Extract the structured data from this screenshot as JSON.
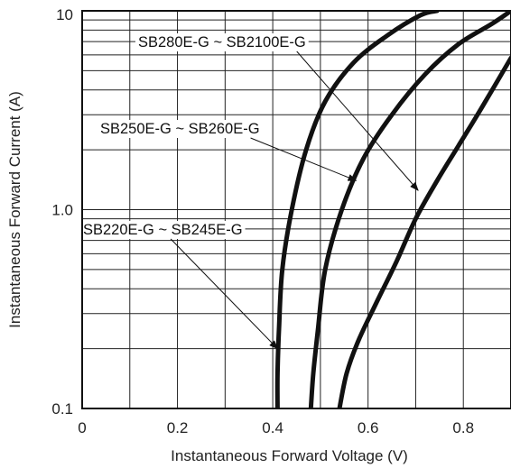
{
  "chart_data": {
    "type": "line",
    "title": "",
    "xlabel": "Instantaneous Forward Voltage (V)",
    "ylabel": "Instantaneous Forward Current (A)",
    "xlim": [
      0,
      0.9
    ],
    "ylim": [
      0.1,
      10
    ],
    "yscale": "log",
    "grid": true,
    "x_ticks": [
      0,
      0.2,
      0.4,
      0.6,
      0.8
    ],
    "x_tick_labels": [
      "0",
      "0.2",
      "0.4",
      "0.6",
      "0.8"
    ],
    "y_ticks": [
      0.1,
      1.0,
      10
    ],
    "y_tick_labels": [
      "0.1",
      "1.0",
      "10"
    ],
    "series": [
      {
        "name": "SB220E-G ~ SB245E-G",
        "x": [
          0.41,
          0.41,
          0.413,
          0.42,
          0.44,
          0.47,
          0.51,
          0.57,
          0.64,
          0.71,
          0.745
        ],
        "y": [
          0.1,
          0.15,
          0.25,
          0.5,
          1.0,
          2.0,
          3.5,
          5.5,
          7.5,
          9.5,
          10
        ]
      },
      {
        "name": "SB250E-G ~ SB260E-G",
        "x": [
          0.48,
          0.485,
          0.495,
          0.51,
          0.545,
          0.59,
          0.65,
          0.72,
          0.79,
          0.86,
          0.9
        ],
        "y": [
          0.1,
          0.15,
          0.25,
          0.5,
          1.0,
          1.8,
          3.0,
          4.8,
          6.8,
          8.6,
          10
        ]
      },
      {
        "name": "SB280E-G ~ SB2100E-G",
        "x": [
          0.54,
          0.555,
          0.58,
          0.62,
          0.66,
          0.7,
          0.745,
          0.79,
          0.84,
          0.9
        ],
        "y": [
          0.1,
          0.15,
          0.22,
          0.35,
          0.55,
          0.9,
          1.4,
          2.1,
          3.3,
          5.8
        ]
      }
    ],
    "annotations": [
      {
        "text": "SB280E-G ~ SB2100E-G",
        "points_to_series": "SB280E-G ~ SB2100E-G",
        "at": {
          "x": 0.705,
          "y": 1.25
        }
      },
      {
        "text": "SB250E-G ~ SB260E-G",
        "points_to_series": "SB250E-G ~ SB260E-G",
        "at": {
          "x": 0.575,
          "y": 1.4
        }
      },
      {
        "text": "SB220E-G ~ SB245E-G",
        "points_to_series": "SB220E-G ~ SB245E-G",
        "at": {
          "x": 0.41,
          "y": 0.2
        }
      }
    ]
  }
}
